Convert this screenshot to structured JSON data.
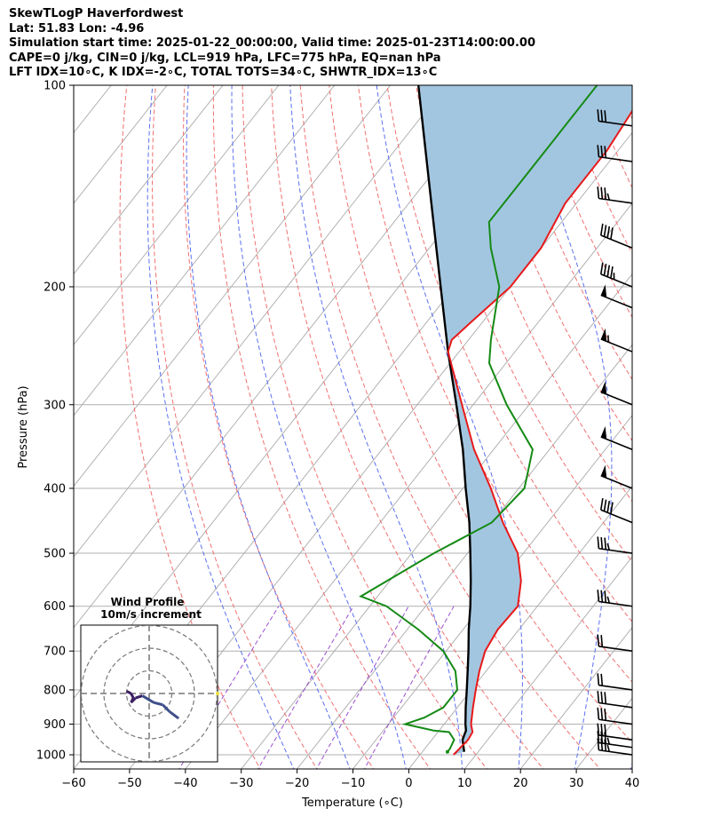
{
  "header": {
    "line1": "SkewTLogP Haverfordwest",
    "line2": "Lat: 51.83   Lon: -4.96",
    "line3": "Simulation start time: 2025-01-22_00:00:00, Valid time: 2025-01-23T14:00:00.00",
    "line4": "CAPE=0 j/kg, CIN=0 j/kg, LCL=919 hPa, LFC=775 hPa, EQ=nan hPa",
    "line5": "LFT IDX=10∘C, K IDX=-2∘C, TOTAL TOTS=34∘C, SHWTR_IDX=13∘C"
  },
  "chart_data": {
    "type": "line",
    "subtype": "skew-t log-p",
    "xlabel": "Temperature (∘C)",
    "ylabel": "Pressure (hPa)",
    "xlim": [
      -60,
      40
    ],
    "ylim": [
      1050,
      100
    ],
    "y_scale": "log",
    "x_ticks": [
      -60,
      -50,
      -40,
      -30,
      -20,
      -10,
      0,
      10,
      20,
      30,
      40
    ],
    "y_ticks": [
      100,
      200,
      300,
      400,
      500,
      600,
      700,
      800,
      900,
      1000
    ],
    "grid": true,
    "colors": {
      "temperature": "#e8191a",
      "dewpoint": "#158a15",
      "parcel": "#000000",
      "cape_fill": "#a3c6e0",
      "dry_adiabat": "#f07070",
      "moist_adiabat": "#5a6ff0",
      "mixing_ratio": "#9a4fd0",
      "isotherm": "#aaaaaa"
    },
    "series": [
      {
        "name": "temperature",
        "points": [
          [
            1000,
            6.0
          ],
          [
            950,
            6.5
          ],
          [
            925,
            6.2
          ],
          [
            900,
            4.8
          ],
          [
            850,
            2.8
          ],
          [
            800,
            0.8
          ],
          [
            750,
            -1.2
          ],
          [
            700,
            -3.0
          ],
          [
            650,
            -3.8
          ],
          [
            600,
            -3.5
          ],
          [
            550,
            -6.5
          ],
          [
            500,
            -11.0
          ],
          [
            450,
            -18.0
          ],
          [
            400,
            -25.0
          ],
          [
            350,
            -33.5
          ],
          [
            300,
            -42.0
          ],
          [
            250,
            -52.0
          ],
          [
            240,
            -53.0
          ],
          [
            225,
            -52.0
          ],
          [
            200,
            -50.0
          ],
          [
            175,
            -50.0
          ],
          [
            150,
            -52.0
          ],
          [
            125,
            -52.0
          ],
          [
            110,
            -53.0
          ],
          [
            100,
            -54.0
          ]
        ]
      },
      {
        "name": "dewpoint",
        "points": [
          [
            990,
            4.5
          ],
          [
            980,
            4.5
          ],
          [
            950,
            4.0
          ],
          [
            925,
            2.0
          ],
          [
            920,
            -1.0
          ],
          [
            900,
            -7.0
          ],
          [
            880,
            -4.5
          ],
          [
            850,
            -2.5
          ],
          [
            800,
            -2.5
          ],
          [
            750,
            -5.5
          ],
          [
            700,
            -10.5
          ],
          [
            650,
            -18.0
          ],
          [
            600,
            -27.0
          ],
          [
            580,
            -33.0
          ],
          [
            500,
            -26.0
          ],
          [
            450,
            -20.0
          ],
          [
            400,
            -19.0
          ],
          [
            350,
            -23.0
          ],
          [
            300,
            -34.0
          ],
          [
            260,
            -43.0
          ],
          [
            240,
            -46.0
          ],
          [
            200,
            -52.0
          ],
          [
            175,
            -59.0
          ],
          [
            160,
            -63.0
          ],
          [
            140,
            -63.0
          ],
          [
            120,
            -63.0
          ],
          [
            100,
            -63.0
          ]
        ]
      },
      {
        "name": "parcel",
        "points": [
          [
            990,
            7.5
          ],
          [
            950,
            5.5
          ],
          [
            920,
            4.8
          ],
          [
            900,
            3.8
          ],
          [
            850,
            1.5
          ],
          [
            800,
            -0.8
          ],
          [
            750,
            -3.3
          ],
          [
            700,
            -6.0
          ],
          [
            650,
            -9.0
          ],
          [
            600,
            -12.0
          ],
          [
            550,
            -15.5
          ],
          [
            500,
            -19.5
          ],
          [
            450,
            -24.0
          ],
          [
            400,
            -29.5
          ],
          [
            350,
            -35.5
          ],
          [
            300,
            -43.0
          ],
          [
            250,
            -52.0
          ],
          [
            200,
            -62.5
          ],
          [
            150,
            -76.0
          ],
          [
            100,
            -95.0
          ]
        ]
      }
    ],
    "wind_barbs": [
      {
        "p": 1000,
        "speed_kt": 35
      },
      {
        "p": 975,
        "speed_kt": 35
      },
      {
        "p": 950,
        "speed_kt": 30
      },
      {
        "p": 900,
        "speed_kt": 30
      },
      {
        "p": 850,
        "speed_kt": 30
      },
      {
        "p": 800,
        "speed_kt": 20
      },
      {
        "p": 700,
        "speed_kt": 20
      },
      {
        "p": 600,
        "speed_kt": 35
      },
      {
        "p": 500,
        "speed_kt": 35
      },
      {
        "p": 450,
        "speed_kt": 40
      },
      {
        "p": 400,
        "speed_kt": 50
      },
      {
        "p": 350,
        "speed_kt": 50
      },
      {
        "p": 300,
        "speed_kt": 50
      },
      {
        "p": 250,
        "speed_kt": 55
      },
      {
        "p": 215,
        "speed_kt": 50
      },
      {
        "p": 200,
        "speed_kt": 45
      },
      {
        "p": 175,
        "speed_kt": 40
      },
      {
        "p": 150,
        "speed_kt": 35
      },
      {
        "p": 130,
        "speed_kt": 30
      },
      {
        "p": 115,
        "speed_kt": 30
      }
    ],
    "hodograph": {
      "title_line1": "Wind Profile",
      "title_line2": "10m/s increment",
      "rings_ms": [
        10,
        20,
        30
      ],
      "points_uv": [
        [
          -10,
          1
        ],
        [
          -8,
          0
        ],
        [
          -7,
          -2
        ],
        [
          -8,
          -4
        ],
        [
          -6,
          -2
        ],
        [
          -3,
          -1
        ],
        [
          2,
          -4
        ],
        [
          6,
          -5
        ],
        [
          9,
          -8
        ],
        [
          13,
          -11
        ]
      ]
    }
  }
}
